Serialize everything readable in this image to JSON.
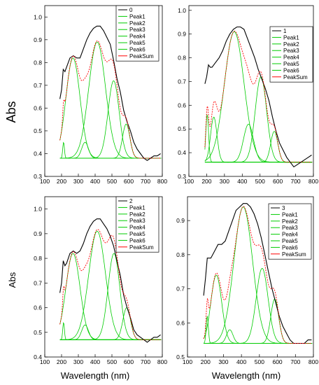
{
  "figure": {
    "ylabel_top": "Abs",
    "ylabel_bottom": "Abs",
    "xlabel_left": "Wavelength (nm)",
    "xlabel_right": "Wavelength (nm)",
    "colors": {
      "data": "#000000",
      "peak": "#00cc00",
      "sum": "#ff0000"
    }
  },
  "chart_data": [
    {
      "type": "line",
      "legend": [
        "0",
        "Peak1",
        "Peak2",
        "Peak3",
        "Peak4",
        "Peak5",
        "Peak6",
        "PeakSum"
      ],
      "xlim": [
        100,
        800
      ],
      "ylim": [
        0.3,
        1.05
      ],
      "xticks": [
        100,
        200,
        300,
        400,
        500,
        600,
        700,
        800
      ],
      "yticks": [
        0.3,
        0.4,
        0.5,
        0.6,
        0.7,
        0.8,
        0.9,
        1.0
      ],
      "ytick_labels": [
        "0.3",
        "0.4",
        "0.5",
        "0.6",
        "0.7",
        "0.8",
        "0.9",
        "1.0"
      ],
      "baseline": 0.38,
      "peaks": [
        {
          "center": 212,
          "height": 0.45,
          "width": 5
        },
        {
          "center": 268,
          "height": 0.82,
          "width": 42
        },
        {
          "center": 340,
          "height": 0.45,
          "width": 20
        },
        {
          "center": 412,
          "height": 0.89,
          "width": 50
        },
        {
          "center": 510,
          "height": 0.72,
          "width": 33
        },
        {
          "center": 585,
          "height": 0.53,
          "width": 22
        }
      ],
      "data_x": [
        190,
        200,
        210,
        220,
        230,
        250,
        270,
        290,
        310,
        330,
        350,
        370,
        390,
        410,
        430,
        450,
        470,
        490,
        510,
        530,
        550,
        570,
        590,
        610,
        630,
        650,
        670,
        690,
        710,
        730,
        750,
        770,
        790
      ],
      "data_y": [
        0.64,
        0.68,
        0.77,
        0.76,
        0.78,
        0.82,
        0.83,
        0.82,
        0.82,
        0.86,
        0.9,
        0.93,
        0.95,
        0.96,
        0.96,
        0.94,
        0.91,
        0.88,
        0.81,
        0.73,
        0.67,
        0.59,
        0.54,
        0.5,
        0.45,
        0.42,
        0.4,
        0.38,
        0.37,
        0.38,
        0.39,
        0.39,
        0.4
      ]
    },
    {
      "type": "line",
      "legend": [
        "1",
        "Peak1",
        "Peak2",
        "Peak3",
        "Peak4",
        "Peak5",
        "Peak6",
        "PeakSum"
      ],
      "xlim": [
        100,
        800
      ],
      "ylim": [
        0.3,
        1.02
      ],
      "xticks": [
        100,
        200,
        300,
        400,
        500,
        600,
        700,
        800
      ],
      "yticks": [
        0.3,
        0.4,
        0.5,
        0.6,
        0.7,
        0.8,
        0.9,
        1.0
      ],
      "ytick_labels": [
        "0.3",
        "0.4",
        "0.5",
        "0.6",
        "0.7",
        "0.8",
        "0.9",
        "1.0"
      ],
      "baseline": 0.36,
      "peaks": [
        {
          "center": 203,
          "height": 0.56,
          "width": 8
        },
        {
          "center": 240,
          "height": 0.55,
          "width": 18
        },
        {
          "center": 355,
          "height": 0.91,
          "width": 55
        },
        {
          "center": 435,
          "height": 0.52,
          "width": 28
        },
        {
          "center": 505,
          "height": 0.72,
          "width": 32
        },
        {
          "center": 580,
          "height": 0.49,
          "width": 20
        }
      ],
      "data_x": [
        190,
        200,
        210,
        220,
        230,
        250,
        270,
        290,
        310,
        330,
        350,
        370,
        390,
        410,
        430,
        450,
        470,
        490,
        510,
        530,
        550,
        570,
        590,
        610,
        630,
        650,
        670,
        690,
        710,
        730,
        750,
        770,
        790
      ],
      "data_y": [
        0.69,
        0.72,
        0.77,
        0.76,
        0.76,
        0.78,
        0.8,
        0.83,
        0.87,
        0.9,
        0.92,
        0.93,
        0.93,
        0.92,
        0.88,
        0.84,
        0.8,
        0.75,
        0.71,
        0.67,
        0.62,
        0.55,
        0.49,
        0.44,
        0.41,
        0.38,
        0.36,
        0.34,
        0.35,
        0.36,
        0.37,
        0.38,
        0.39
      ]
    },
    {
      "type": "line",
      "legend": [
        "2",
        "Peak1",
        "Peak2",
        "Peak3",
        "Peak4",
        "Peak5",
        "Peak6",
        "PeakSum"
      ],
      "xlim": [
        100,
        800
      ],
      "ylim": [
        0.4,
        1.05
      ],
      "xticks": [
        100,
        200,
        300,
        400,
        500,
        600,
        700,
        800
      ],
      "yticks": [
        0.4,
        0.5,
        0.6,
        0.7,
        0.8,
        0.9,
        1.0
      ],
      "ytick_labels": [
        "0.4",
        "0.5",
        "0.6",
        "0.7",
        "0.8",
        "0.9",
        "1.0"
      ],
      "baseline": 0.47,
      "peaks": [
        {
          "center": 212,
          "height": 0.54,
          "width": 5
        },
        {
          "center": 268,
          "height": 0.82,
          "width": 42
        },
        {
          "center": 340,
          "height": 0.53,
          "width": 20
        },
        {
          "center": 412,
          "height": 0.91,
          "width": 50
        },
        {
          "center": 512,
          "height": 0.82,
          "width": 35
        },
        {
          "center": 588,
          "height": 0.6,
          "width": 23
        }
      ],
      "data_x": [
        190,
        200,
        210,
        220,
        230,
        250,
        270,
        290,
        310,
        330,
        350,
        370,
        390,
        410,
        430,
        450,
        470,
        490,
        510,
        530,
        550,
        570,
        590,
        610,
        630,
        650,
        670,
        690,
        710,
        730,
        750,
        770,
        790
      ],
      "data_y": [
        0.66,
        0.7,
        0.79,
        0.77,
        0.78,
        0.82,
        0.83,
        0.82,
        0.83,
        0.86,
        0.9,
        0.93,
        0.95,
        0.96,
        0.96,
        0.94,
        0.92,
        0.89,
        0.85,
        0.79,
        0.73,
        0.65,
        0.6,
        0.56,
        0.51,
        0.49,
        0.48,
        0.47,
        0.46,
        0.47,
        0.48,
        0.48,
        0.49
      ]
    },
    {
      "type": "line",
      "legend": [
        "3",
        "Peak1",
        "Peak2",
        "Peak3",
        "Peak4",
        "Peak5",
        "Peak6",
        "PeakSum"
      ],
      "xlim": [
        100,
        800
      ],
      "ylim": [
        0.5,
        0.97
      ],
      "xticks": [
        100,
        200,
        300,
        400,
        500,
        600,
        700,
        800
      ],
      "yticks": [
        0.5,
        0.6,
        0.7,
        0.8,
        0.9
      ],
      "ytick_labels": [
        "0.5",
        "0.6",
        "0.7",
        "0.8",
        "0.9"
      ],
      "baseline": 0.54,
      "peaks": [
        {
          "center": 210,
          "height": 0.62,
          "width": 6
        },
        {
          "center": 260,
          "height": 0.74,
          "width": 30
        },
        {
          "center": 335,
          "height": 0.58,
          "width": 18
        },
        {
          "center": 410,
          "height": 0.94,
          "width": 52
        },
        {
          "center": 515,
          "height": 0.76,
          "width": 33
        },
        {
          "center": 585,
          "height": 0.67,
          "width": 22
        }
      ],
      "data_x": [
        190,
        200,
        210,
        220,
        230,
        250,
        270,
        290,
        310,
        330,
        350,
        370,
        390,
        410,
        430,
        450,
        470,
        490,
        510,
        530,
        550,
        570,
        590,
        610,
        630,
        650,
        670,
        690,
        710,
        730,
        750,
        770,
        790
      ],
      "data_y": [
        0.68,
        0.73,
        0.79,
        0.79,
        0.79,
        0.81,
        0.83,
        0.83,
        0.84,
        0.87,
        0.9,
        0.93,
        0.94,
        0.95,
        0.95,
        0.94,
        0.92,
        0.89,
        0.85,
        0.8,
        0.75,
        0.7,
        0.66,
        0.62,
        0.59,
        0.57,
        0.55,
        0.54,
        0.54,
        0.54,
        0.54,
        0.55,
        0.55
      ]
    }
  ]
}
